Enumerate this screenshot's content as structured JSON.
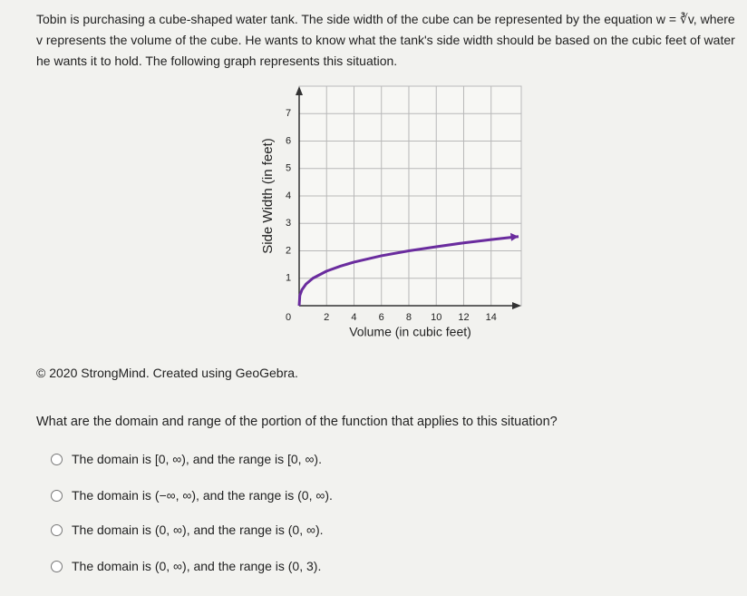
{
  "intro": "Tobin is purchasing a cube-shaped water tank. The side width of the cube can be represented by the equation w = ∛v, where v represents the volume of the cube. He wants to know what the tank's side width should be based on the cubic feet of water he wants it to hold. The following graph represents this situation.",
  "chart_data": {
    "type": "line",
    "xlabel": "Volume (in cubic feet)",
    "ylabel": "Side Width (in feet)",
    "x": [
      0,
      0.05,
      0.2,
      0.5,
      1,
      2,
      3,
      4,
      6,
      8,
      10,
      12,
      14,
      16
    ],
    "series": [
      {
        "color": "#6a2c9e",
        "values": [
          0,
          0.37,
          0.58,
          0.79,
          1,
          1.26,
          1.44,
          1.59,
          1.82,
          2,
          2.15,
          2.29,
          2.41,
          2.52
        ]
      }
    ],
    "xlim": [
      0,
      16.2
    ],
    "ylim": [
      0,
      8
    ],
    "xticks": [
      0,
      2,
      4,
      6,
      8,
      10,
      12,
      14
    ],
    "yticks": [
      1,
      2,
      3,
      4,
      5,
      6,
      7
    ],
    "grid": true
  },
  "credit": "© 2020 StrongMind. Created using GeoGebra.",
  "question": "What are the domain and range of the portion of the function that applies to this situation?",
  "options": [
    "The domain is [0, ∞), and the range is [0, ∞).",
    "The domain is (−∞, ∞), and the range is (0, ∞).",
    "The domain is (0, ∞), and the range is (0, ∞).",
    "The domain is (0, ∞), and the range is (0, 3)."
  ]
}
